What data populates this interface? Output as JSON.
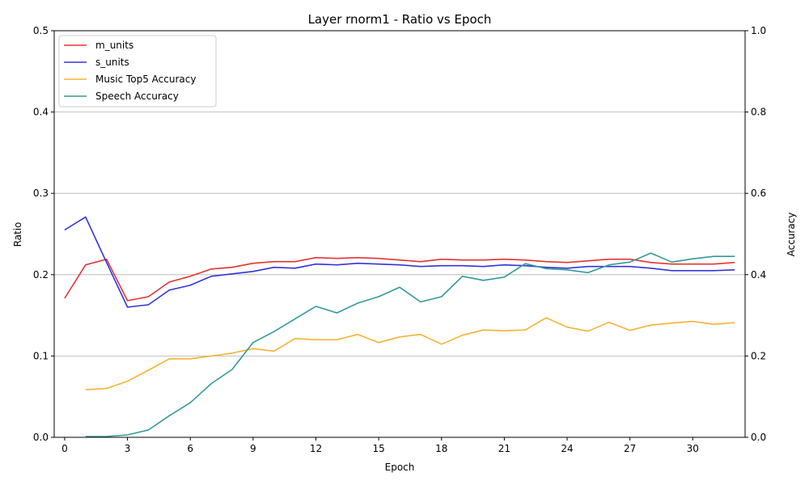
{
  "chart_data": {
    "type": "line",
    "title": "Layer rnorm1 - Ratio vs Epoch",
    "xlabel": "Epoch",
    "ylabel": "Ratio",
    "y2label": "Accuracy",
    "xlim": [
      -0.5,
      32.5
    ],
    "ylim": [
      0,
      0.5
    ],
    "y2lim": [
      0,
      1.0
    ],
    "xticks": [
      0,
      3,
      6,
      9,
      12,
      15,
      18,
      21,
      24,
      27,
      30
    ],
    "yticks": [
      0.0,
      0.1,
      0.2,
      0.3,
      0.4,
      0.5
    ],
    "y2ticks": [
      0.0,
      0.2,
      0.4,
      0.6,
      0.8,
      1.0
    ],
    "grid": "horizontal",
    "legend_position": "top-left",
    "series": [
      {
        "name": "m_units",
        "axis": "left",
        "color": "#e53333",
        "x": [
          0,
          1,
          2,
          3,
          4,
          5,
          6,
          7,
          8,
          9,
          10,
          11,
          12,
          13,
          14,
          15,
          16,
          17,
          18,
          19,
          20,
          21,
          22,
          23,
          24,
          25,
          26,
          27,
          28,
          29,
          30,
          31,
          32
        ],
        "values": [
          0.171,
          0.212,
          0.219,
          0.168,
          0.173,
          0.191,
          0.198,
          0.207,
          0.209,
          0.214,
          0.216,
          0.216,
          0.221,
          0.22,
          0.221,
          0.22,
          0.218,
          0.216,
          0.219,
          0.218,
          0.218,
          0.219,
          0.218,
          0.216,
          0.215,
          0.217,
          0.219,
          0.219,
          0.215,
          0.213,
          0.213,
          0.213,
          0.215
        ]
      },
      {
        "name": "s_units",
        "axis": "left",
        "color": "#3333dd",
        "x": [
          0,
          1,
          2,
          3,
          4,
          5,
          6,
          7,
          8,
          9,
          10,
          11,
          12,
          13,
          14,
          15,
          16,
          17,
          18,
          19,
          20,
          21,
          22,
          23,
          24,
          25,
          26,
          27,
          28,
          29,
          30,
          31,
          32
        ],
        "values": [
          0.255,
          0.271,
          0.215,
          0.16,
          0.163,
          0.181,
          0.187,
          0.198,
          0.201,
          0.204,
          0.209,
          0.208,
          0.213,
          0.212,
          0.214,
          0.213,
          0.212,
          0.21,
          0.211,
          0.211,
          0.21,
          0.212,
          0.211,
          0.209,
          0.208,
          0.21,
          0.21,
          0.21,
          0.208,
          0.205,
          0.205,
          0.205,
          0.206
        ]
      },
      {
        "name": "Music Top5 Accuracy",
        "axis": "right",
        "color": "#f5b335",
        "x": [
          1,
          2,
          3,
          4,
          5,
          6,
          7,
          8,
          9,
          10,
          11,
          12,
          13,
          14,
          15,
          16,
          17,
          18,
          19,
          20,
          21,
          22,
          23,
          24,
          25,
          26,
          27,
          28,
          29,
          30,
          31,
          32
        ],
        "values": [
          0.117,
          0.12,
          0.138,
          0.165,
          0.193,
          0.193,
          0.2,
          0.207,
          0.218,
          0.212,
          0.243,
          0.24,
          0.24,
          0.253,
          0.233,
          0.247,
          0.253,
          0.229,
          0.251,
          0.264,
          0.262,
          0.264,
          0.294,
          0.271,
          0.261,
          0.283,
          0.263,
          0.276,
          0.281,
          0.285,
          0.278,
          0.282
        ]
      },
      {
        "name": "Speech Accuracy",
        "axis": "right",
        "color": "#339999",
        "x": [
          1,
          2,
          3,
          4,
          5,
          6,
          7,
          8,
          9,
          10,
          11,
          12,
          13,
          14,
          15,
          16,
          17,
          18,
          19,
          20,
          21,
          22,
          23,
          24,
          25,
          26,
          27,
          28,
          29,
          30,
          31,
          32
        ],
        "values": [
          0.002,
          0.002,
          0.006,
          0.018,
          0.053,
          0.085,
          0.132,
          0.167,
          0.233,
          0.26,
          0.291,
          0.322,
          0.306,
          0.33,
          0.346,
          0.369,
          0.333,
          0.346,
          0.396,
          0.386,
          0.394,
          0.427,
          0.415,
          0.412,
          0.405,
          0.424,
          0.431,
          0.453,
          0.431,
          0.439,
          0.445,
          0.445
        ]
      }
    ]
  }
}
